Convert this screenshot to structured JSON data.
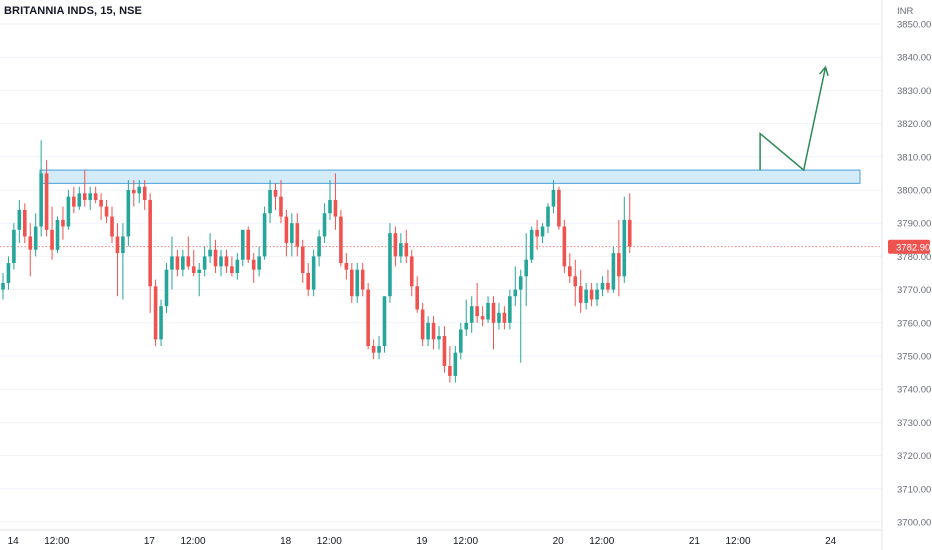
{
  "header": {
    "title": "BRITANNIA INDS, 15, NSE"
  },
  "chart_data": {
    "type": "candlestick",
    "currency_label": "INR",
    "ylim": [
      3697,
      3854
    ],
    "y_ticks": [
      3850,
      3840,
      3830,
      3820,
      3810,
      3800,
      3790,
      3780,
      3770,
      3760,
      3750,
      3740,
      3730,
      3720,
      3710,
      3700
    ],
    "x_ticks": [
      {
        "label": "14",
        "i": 1.5
      },
      {
        "label": "12:00",
        "i": 9.5
      },
      {
        "label": "17",
        "i": 26.5
      },
      {
        "label": "12:00",
        "i": 34.5
      },
      {
        "label": "18",
        "i": 51.5
      },
      {
        "label": "12:00",
        "i": 59.5
      },
      {
        "label": "19",
        "i": 76.5
      },
      {
        "label": "12:00",
        "i": 84.5
      },
      {
        "label": "20",
        "i": 101.5
      },
      {
        "label": "12:00",
        "i": 109.5
      },
      {
        "label": "21",
        "i": 126.5
      },
      {
        "label": "12:00",
        "i": 134.5
      },
      {
        "label": "24",
        "i": 151.5
      }
    ],
    "last_price": 3782.9,
    "last_price_label": "3782.90",
    "colors": {
      "up": "#26a69a",
      "down": "#ef5350",
      "zone_fill": "#d4ebf9",
      "zone_border": "#4a9fd8",
      "arrow": "#2e8a57",
      "price_line": "#ef5350"
    },
    "resistance_zone": {
      "top": 3806,
      "bottom": 3802,
      "from_i": 0,
      "to_i": 158
    },
    "projection_path": [
      {
        "i": 138,
        "p": 3806
      },
      {
        "i": 138,
        "p": 3817
      },
      {
        "i": 146,
        "p": 3806
      },
      {
        "i": 150,
        "p": 3837
      }
    ],
    "candles": [
      {
        "o": 3770,
        "h": 3775,
        "l": 3767,
        "c": 3772
      },
      {
        "o": 3772,
        "h": 3780,
        "l": 3770,
        "c": 3778
      },
      {
        "o": 3778,
        "h": 3790,
        "l": 3776,
        "c": 3788
      },
      {
        "o": 3788,
        "h": 3797,
        "l": 3784,
        "c": 3794
      },
      {
        "o": 3794,
        "h": 3796,
        "l": 3784,
        "c": 3786
      },
      {
        "o": 3786,
        "h": 3790,
        "l": 3774,
        "c": 3782
      },
      {
        "o": 3782,
        "h": 3793,
        "l": 3780,
        "c": 3789
      },
      {
        "o": 3789,
        "h": 3815,
        "l": 3786,
        "c": 3805
      },
      {
        "o": 3805,
        "h": 3809,
        "l": 3786,
        "c": 3788
      },
      {
        "o": 3788,
        "h": 3795,
        "l": 3779,
        "c": 3782
      },
      {
        "o": 3782,
        "h": 3792,
        "l": 3781,
        "c": 3791
      },
      {
        "o": 3791,
        "h": 3795,
        "l": 3785,
        "c": 3789
      },
      {
        "o": 3789,
        "h": 3800,
        "l": 3788,
        "c": 3798
      },
      {
        "o": 3798,
        "h": 3801,
        "l": 3793,
        "c": 3795
      },
      {
        "o": 3795,
        "h": 3801,
        "l": 3794,
        "c": 3799
      },
      {
        "o": 3799,
        "h": 3806,
        "l": 3795,
        "c": 3797
      },
      {
        "o": 3797,
        "h": 3801,
        "l": 3794,
        "c": 3799
      },
      {
        "o": 3799,
        "h": 3801,
        "l": 3796,
        "c": 3797
      },
      {
        "o": 3797,
        "h": 3799,
        "l": 3791,
        "c": 3795
      },
      {
        "o": 3795,
        "h": 3797,
        "l": 3790,
        "c": 3792
      },
      {
        "o": 3792,
        "h": 3795,
        "l": 3784,
        "c": 3786
      },
      {
        "o": 3786,
        "h": 3790,
        "l": 3768,
        "c": 3781
      },
      {
        "o": 3781,
        "h": 3790,
        "l": 3767,
        "c": 3786
      },
      {
        "o": 3786,
        "h": 3803,
        "l": 3783,
        "c": 3800
      },
      {
        "o": 3800,
        "h": 3803,
        "l": 3795,
        "c": 3799
      },
      {
        "o": 3799,
        "h": 3803,
        "l": 3796,
        "c": 3801
      },
      {
        "o": 3801,
        "h": 3803,
        "l": 3794,
        "c": 3797
      },
      {
        "o": 3797,
        "h": 3799,
        "l": 3763,
        "c": 3771
      },
      {
        "o": 3771,
        "h": 3773,
        "l": 3753,
        "c": 3755
      },
      {
        "o": 3755,
        "h": 3767,
        "l": 3753,
        "c": 3765
      },
      {
        "o": 3765,
        "h": 3778,
        "l": 3763,
        "c": 3776
      },
      {
        "o": 3776,
        "h": 3786,
        "l": 3770,
        "c": 3780
      },
      {
        "o": 3780,
        "h": 3782,
        "l": 3774,
        "c": 3776
      },
      {
        "o": 3776,
        "h": 3782,
        "l": 3774,
        "c": 3780
      },
      {
        "o": 3780,
        "h": 3786,
        "l": 3776,
        "c": 3777
      },
      {
        "o": 3777,
        "h": 3782,
        "l": 3774,
        "c": 3775
      },
      {
        "o": 3775,
        "h": 3778,
        "l": 3768,
        "c": 3776
      },
      {
        "o": 3776,
        "h": 3783,
        "l": 3774,
        "c": 3780
      },
      {
        "o": 3780,
        "h": 3787,
        "l": 3778,
        "c": 3782
      },
      {
        "o": 3782,
        "h": 3785,
        "l": 3775,
        "c": 3777
      },
      {
        "o": 3777,
        "h": 3782,
        "l": 3774,
        "c": 3780
      },
      {
        "o": 3780,
        "h": 3782,
        "l": 3775,
        "c": 3777
      },
      {
        "o": 3777,
        "h": 3780,
        "l": 3774,
        "c": 3775
      },
      {
        "o": 3775,
        "h": 3781,
        "l": 3773,
        "c": 3779
      },
      {
        "o": 3779,
        "h": 3788,
        "l": 3777,
        "c": 3788
      },
      {
        "o": 3788,
        "h": 3789,
        "l": 3778,
        "c": 3779
      },
      {
        "o": 3779,
        "h": 3781,
        "l": 3772,
        "c": 3776
      },
      {
        "o": 3776,
        "h": 3783,
        "l": 3774,
        "c": 3780
      },
      {
        "o": 3780,
        "h": 3795,
        "l": 3779,
        "c": 3793
      },
      {
        "o": 3793,
        "h": 3803,
        "l": 3790,
        "c": 3800
      },
      {
        "o": 3800,
        "h": 3802,
        "l": 3794,
        "c": 3798
      },
      {
        "o": 3798,
        "h": 3803,
        "l": 3790,
        "c": 3792
      },
      {
        "o": 3792,
        "h": 3794,
        "l": 3780,
        "c": 3784
      },
      {
        "o": 3784,
        "h": 3793,
        "l": 3780,
        "c": 3790
      },
      {
        "o": 3790,
        "h": 3793,
        "l": 3780,
        "c": 3783
      },
      {
        "o": 3783,
        "h": 3785,
        "l": 3772,
        "c": 3775
      },
      {
        "o": 3775,
        "h": 3778,
        "l": 3768,
        "c": 3770
      },
      {
        "o": 3770,
        "h": 3782,
        "l": 3768,
        "c": 3780
      },
      {
        "o": 3780,
        "h": 3788,
        "l": 3777,
        "c": 3786
      },
      {
        "o": 3786,
        "h": 3796,
        "l": 3784,
        "c": 3793
      },
      {
        "o": 3793,
        "h": 3803,
        "l": 3791,
        "c": 3797
      },
      {
        "o": 3797,
        "h": 3805,
        "l": 3788,
        "c": 3792
      },
      {
        "o": 3792,
        "h": 3794,
        "l": 3777,
        "c": 3778
      },
      {
        "o": 3778,
        "h": 3781,
        "l": 3773,
        "c": 3776
      },
      {
        "o": 3776,
        "h": 3778,
        "l": 3766,
        "c": 3768
      },
      {
        "o": 3768,
        "h": 3778,
        "l": 3766,
        "c": 3776
      },
      {
        "o": 3776,
        "h": 3778,
        "l": 3768,
        "c": 3770
      },
      {
        "o": 3770,
        "h": 3772,
        "l": 3752,
        "c": 3753
      },
      {
        "o": 3753,
        "h": 3755,
        "l": 3749,
        "c": 3751
      },
      {
        "o": 3751,
        "h": 3756,
        "l": 3749,
        "c": 3753
      },
      {
        "o": 3753,
        "h": 3768,
        "l": 3751,
        "c": 3768
      },
      {
        "o": 3768,
        "h": 3790,
        "l": 3766,
        "c": 3787
      },
      {
        "o": 3787,
        "h": 3789,
        "l": 3777,
        "c": 3780
      },
      {
        "o": 3780,
        "h": 3787,
        "l": 3778,
        "c": 3784
      },
      {
        "o": 3784,
        "h": 3788,
        "l": 3778,
        "c": 3780
      },
      {
        "o": 3780,
        "h": 3782,
        "l": 3768,
        "c": 3771
      },
      {
        "o": 3771,
        "h": 3774,
        "l": 3763,
        "c": 3764
      },
      {
        "o": 3764,
        "h": 3766,
        "l": 3753,
        "c": 3755
      },
      {
        "o": 3755,
        "h": 3762,
        "l": 3753,
        "c": 3760
      },
      {
        "o": 3760,
        "h": 3762,
        "l": 3752,
        "c": 3755
      },
      {
        "o": 3755,
        "h": 3759,
        "l": 3752,
        "c": 3756
      },
      {
        "o": 3756,
        "h": 3759,
        "l": 3745,
        "c": 3747
      },
      {
        "o": 3747,
        "h": 3753,
        "l": 3742,
        "c": 3744
      },
      {
        "o": 3744,
        "h": 3753,
        "l": 3742,
        "c": 3751
      },
      {
        "o": 3751,
        "h": 3760,
        "l": 3749,
        "c": 3758
      },
      {
        "o": 3758,
        "h": 3767,
        "l": 3756,
        "c": 3760
      },
      {
        "o": 3760,
        "h": 3768,
        "l": 3757,
        "c": 3765
      },
      {
        "o": 3765,
        "h": 3772,
        "l": 3760,
        "c": 3762
      },
      {
        "o": 3762,
        "h": 3765,
        "l": 3759,
        "c": 3761
      },
      {
        "o": 3761,
        "h": 3768,
        "l": 3760,
        "c": 3766
      },
      {
        "o": 3766,
        "h": 3768,
        "l": 3752,
        "c": 3760
      },
      {
        "o": 3760,
        "h": 3766,
        "l": 3758,
        "c": 3763
      },
      {
        "o": 3763,
        "h": 3765,
        "l": 3758,
        "c": 3760
      },
      {
        "o": 3760,
        "h": 3770,
        "l": 3758,
        "c": 3768
      },
      {
        "o": 3768,
        "h": 3777,
        "l": 3765,
        "c": 3770
      },
      {
        "o": 3770,
        "h": 3776,
        "l": 3748,
        "c": 3774
      },
      {
        "o": 3774,
        "h": 3787,
        "l": 3765,
        "c": 3779
      },
      {
        "o": 3779,
        "h": 3789,
        "l": 3778,
        "c": 3788
      },
      {
        "o": 3788,
        "h": 3791,
        "l": 3782,
        "c": 3786
      },
      {
        "o": 3786,
        "h": 3790,
        "l": 3784,
        "c": 3789
      },
      {
        "o": 3789,
        "h": 3796,
        "l": 3787,
        "c": 3795
      },
      {
        "o": 3795,
        "h": 3803,
        "l": 3793,
        "c": 3800
      },
      {
        "o": 3800,
        "h": 3801,
        "l": 3788,
        "c": 3789
      },
      {
        "o": 3789,
        "h": 3791,
        "l": 3775,
        "c": 3777
      },
      {
        "o": 3777,
        "h": 3781,
        "l": 3772,
        "c": 3774
      },
      {
        "o": 3774,
        "h": 3779,
        "l": 3765,
        "c": 3771
      },
      {
        "o": 3771,
        "h": 3776,
        "l": 3763,
        "c": 3766
      },
      {
        "o": 3766,
        "h": 3772,
        "l": 3764,
        "c": 3770
      },
      {
        "o": 3770,
        "h": 3772,
        "l": 3765,
        "c": 3767
      },
      {
        "o": 3767,
        "h": 3772,
        "l": 3765,
        "c": 3770
      },
      {
        "o": 3770,
        "h": 3774,
        "l": 3768,
        "c": 3772
      },
      {
        "o": 3772,
        "h": 3776,
        "l": 3769,
        "c": 3770
      },
      {
        "o": 3770,
        "h": 3783,
        "l": 3769,
        "c": 3781
      },
      {
        "o": 3781,
        "h": 3791,
        "l": 3768,
        "c": 3774
      },
      {
        "o": 3774,
        "h": 3798,
        "l": 3772,
        "c": 3791
      },
      {
        "o": 3791,
        "h": 3799,
        "l": 3781,
        "c": 3783
      }
    ]
  }
}
